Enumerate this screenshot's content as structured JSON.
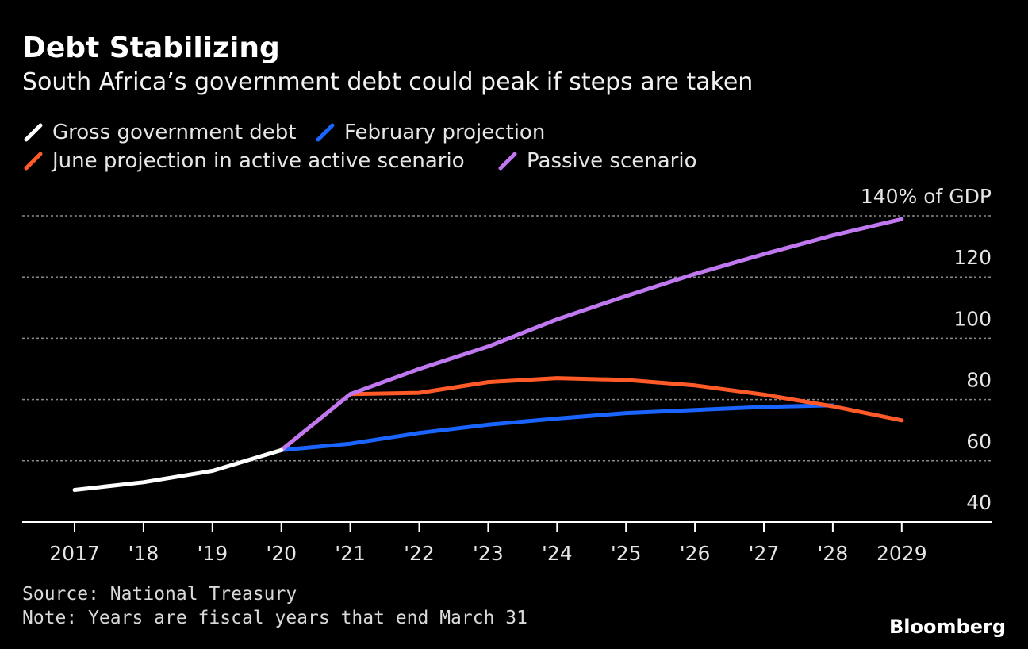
{
  "chart_data": {
    "type": "line",
    "title": "Debt Stabilizing",
    "subtitle": "South Africa’s government debt could peak if steps are taken",
    "x_tick_labels": [
      "2017",
      "'18",
      "'19",
      "'20",
      "'21",
      "'22",
      "'23",
      "'24",
      "'25",
      "'26",
      "'27",
      "'28",
      "2029"
    ],
    "y_tick_labels": [
      "40",
      "60",
      "80",
      "100",
      "120",
      "140% of GDP"
    ],
    "ylim": [
      40,
      140
    ],
    "grid": true,
    "legend_placement": "top-left",
    "series": [
      {
        "name": "Gross government debt",
        "color": "#ffffff",
        "x": [
          2017,
          2018,
          2019,
          2020
        ],
        "y": [
          50.5,
          53,
          56.7,
          63.5
        ]
      },
      {
        "name": "February projection",
        "color": "#1a64ff",
        "x": [
          2020,
          2021,
          2022,
          2023,
          2024,
          2025,
          2026,
          2027,
          2028
        ],
        "y": [
          63.5,
          65.6,
          69.1,
          71.8,
          73.8,
          75.6,
          76.6,
          77.6,
          78.1
        ]
      },
      {
        "name": "June projection in active active scenario",
        "color": "#ff5a28",
        "x": [
          2020,
          2021,
          2022,
          2023,
          2024,
          2025,
          2026,
          2027,
          2028,
          2029
        ],
        "y": [
          63.5,
          81.8,
          82.2,
          85.7,
          87.0,
          86.4,
          84.6,
          81.6,
          77.8,
          73.2
        ]
      },
      {
        "name": "Passive scenario",
        "color": "#bf78f0",
        "x": [
          2020,
          2021,
          2022,
          2023,
          2024,
          2025,
          2026,
          2027,
          2028,
          2029
        ],
        "y": [
          63.5,
          81.8,
          90,
          97.3,
          106.2,
          113.8,
          121,
          127.5,
          133.6,
          138.9
        ]
      }
    ]
  },
  "footer": {
    "source": "Source: National Treasury",
    "note": "Note: Years are fiscal years that end March 31",
    "brand": "Bloomberg"
  }
}
